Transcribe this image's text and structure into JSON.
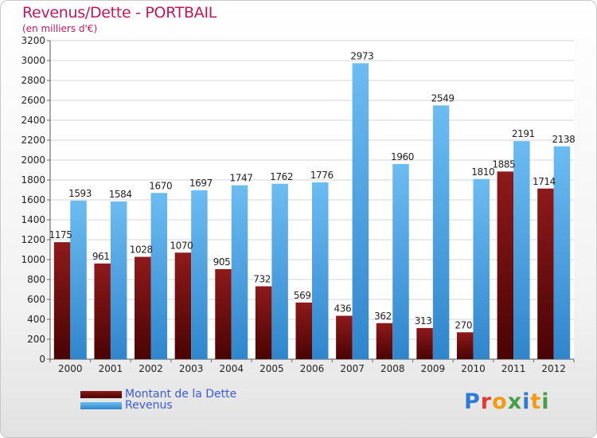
{
  "title": "Revenus/Dette - PORTBAIL",
  "subtitle": "(en milliers d'€)",
  "logo": {
    "text": "Proxiti",
    "colors": [
      "#2e7bd6",
      "#e53935",
      "#f39c12",
      "#43a047",
      "#2e7bd6",
      "#f39c12",
      "#43a047"
    ]
  },
  "chart_data": {
    "type": "bar",
    "categories": [
      "2000",
      "2001",
      "2002",
      "2003",
      "2004",
      "2005",
      "2006",
      "2007",
      "2008",
      "2009",
      "2010",
      "2011",
      "2012"
    ],
    "series": [
      {
        "name": "Montant de la Dette",
        "color": "#6b0a0a",
        "values": [
          1175,
          961,
          1028,
          1070,
          905,
          732,
          569,
          436,
          362,
          313,
          270,
          1885,
          1714
        ]
      },
      {
        "name": "Revenus",
        "color": "#4da3e6",
        "values": [
          1593,
          1584,
          1670,
          1697,
          1747,
          1762,
          1776,
          2973,
          1960,
          2549,
          1810,
          2191,
          2138
        ]
      }
    ],
    "ylim": [
      0,
      3200
    ],
    "yticks": [
      0,
      200,
      400,
      600,
      800,
      1000,
      1200,
      1400,
      1600,
      1800,
      2000,
      2200,
      2400,
      2600,
      2800,
      3000,
      3200
    ],
    "grid": true,
    "legend_position": "bottom-left"
  }
}
